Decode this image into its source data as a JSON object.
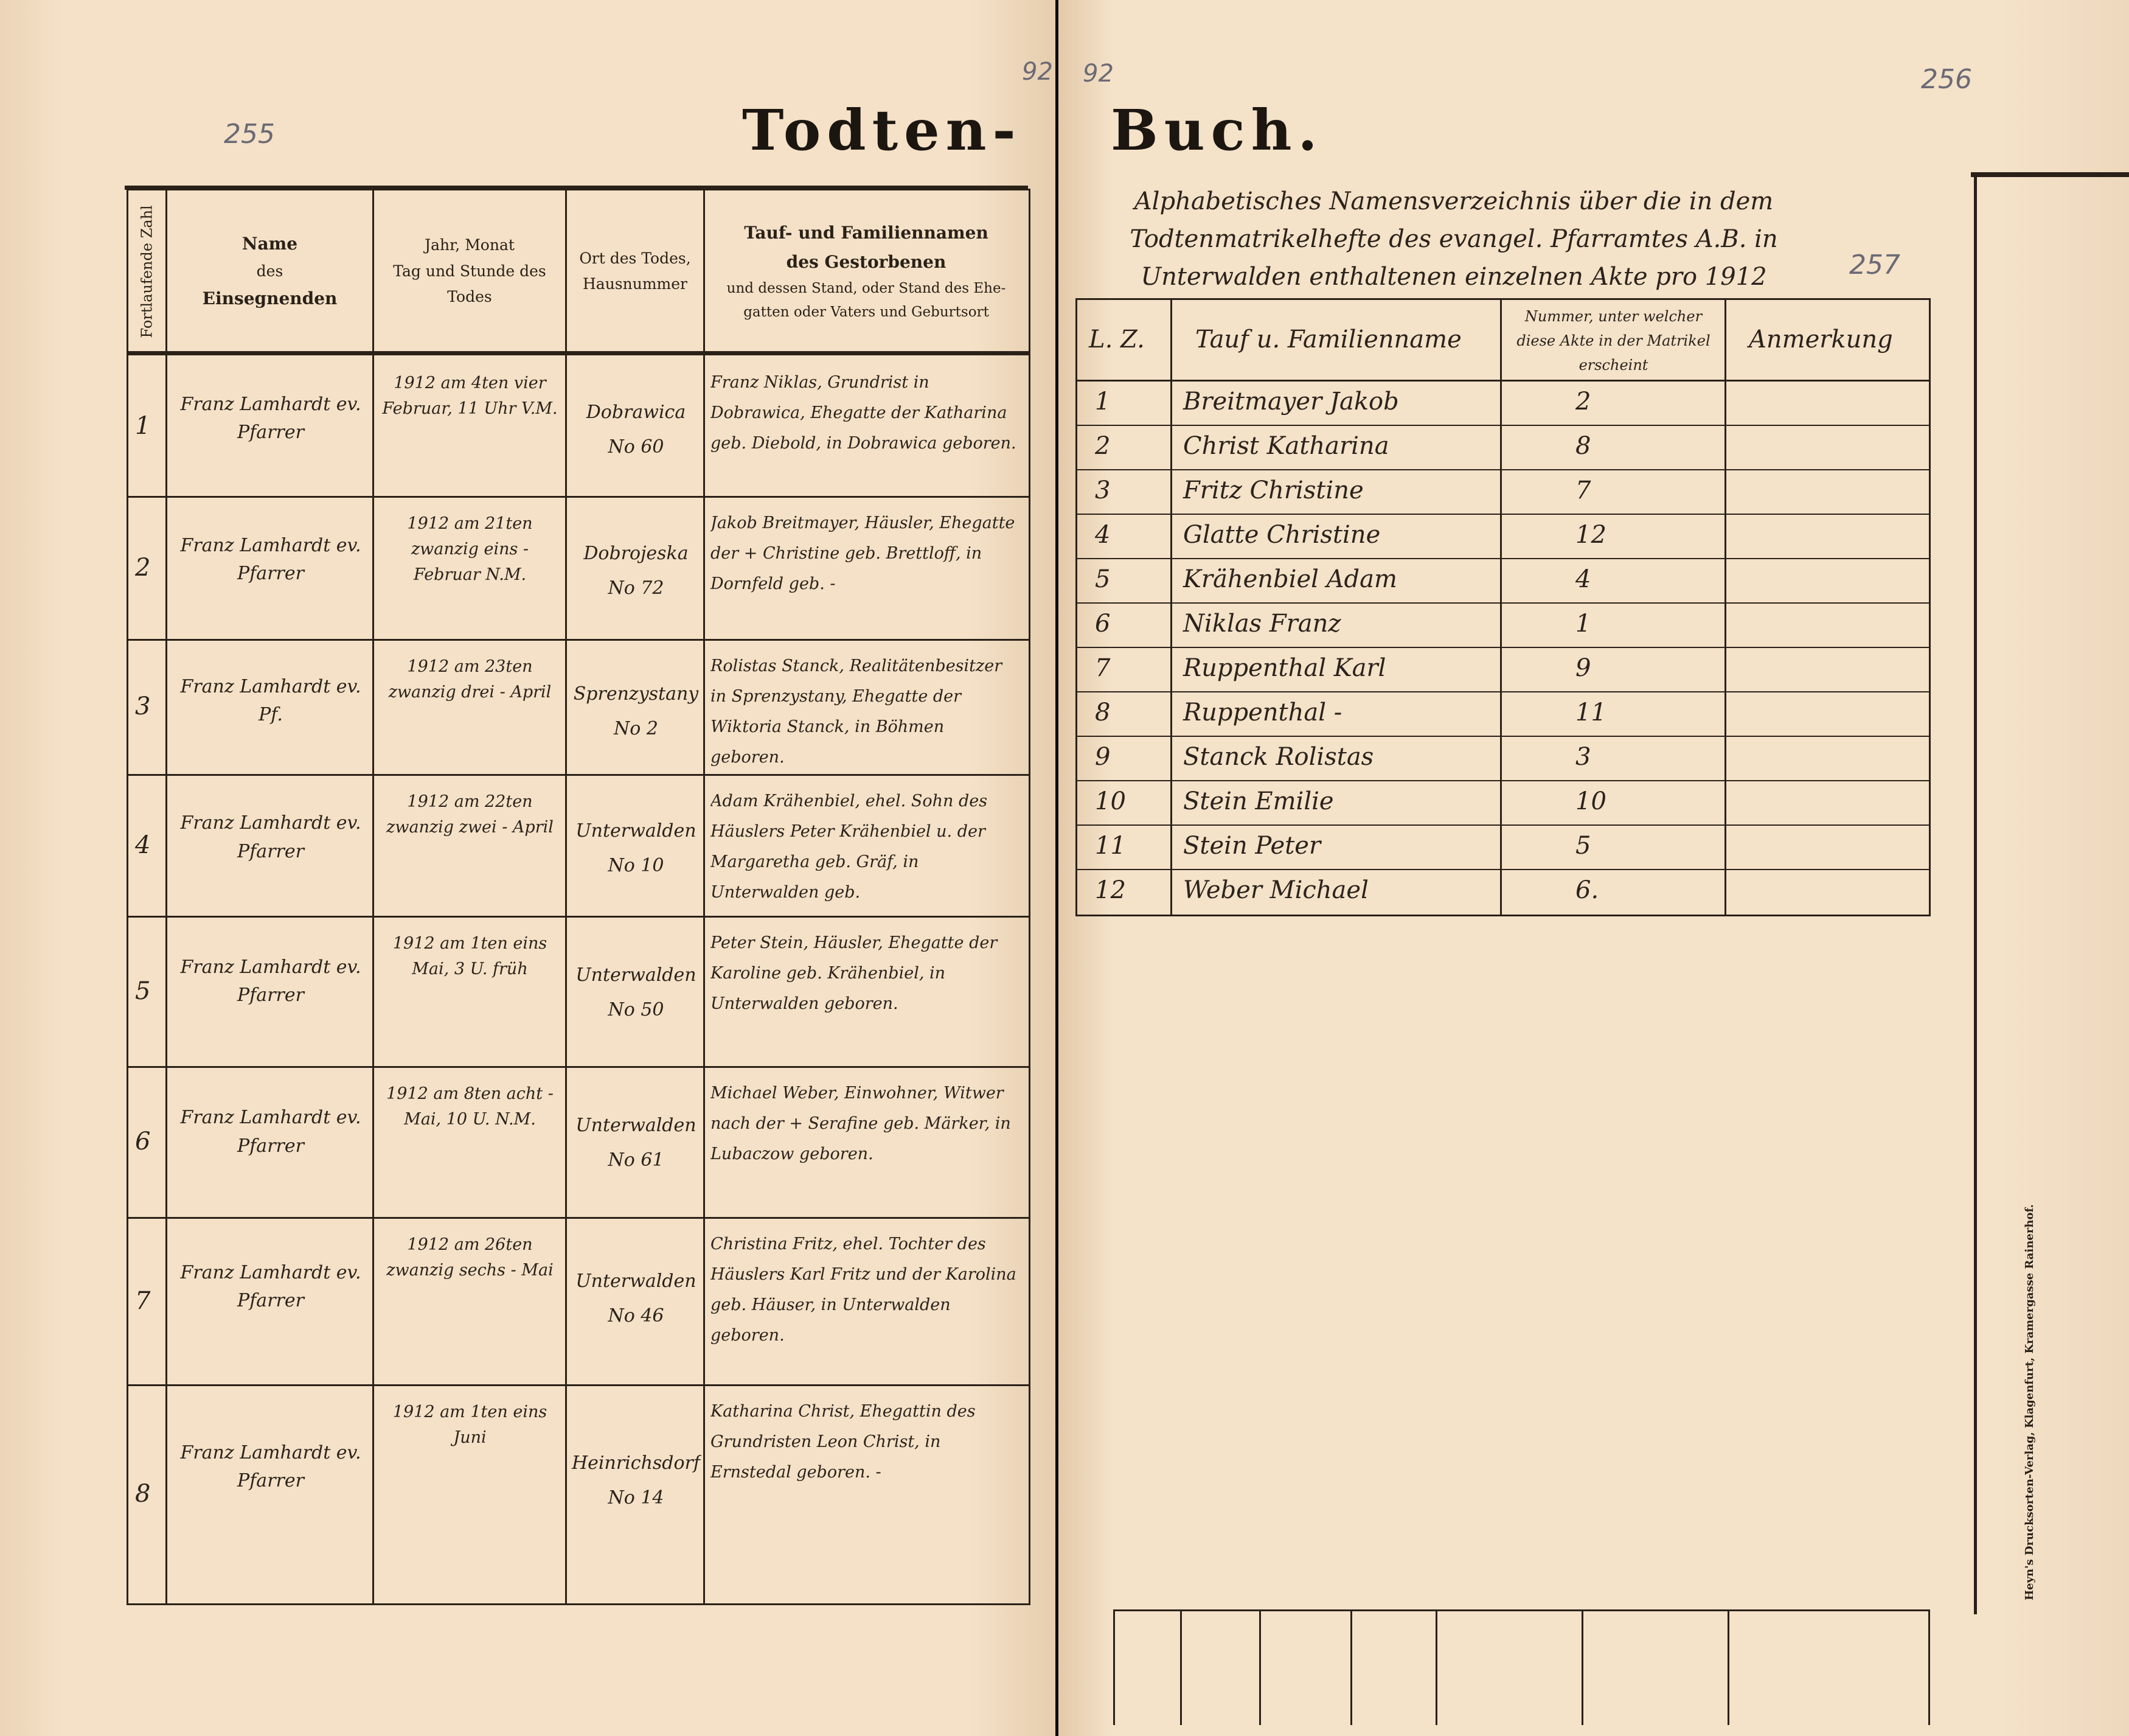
{
  "page_numbers": {
    "left_pencil": "255",
    "left_top": "92",
    "right_top": "92",
    "right_pencil": "256",
    "index_pencil": "257"
  },
  "title": {
    "left": "Todten-",
    "right": "Buch."
  },
  "left_table": {
    "headers": {
      "col1": "Fortlaufende Zahl",
      "col2": [
        "Name",
        "des",
        "Einsegnenden"
      ],
      "col3": [
        "Jahr, Monat",
        "Tag und Stunde des",
        "Todes"
      ],
      "col4": [
        "Ort des Todes,",
        "Hausnummer"
      ],
      "col5": [
        "Tauf- und Familiennamen",
        "des Gestorbenen",
        "und dessen Stand, oder Stand des Ehe-",
        "gatten oder Vaters und Geburtsort"
      ]
    },
    "rows": [
      {
        "no": "1",
        "officiant": "Franz Lamhardt ev. Pfarrer",
        "date": "1912 am 4ten vier Februar, 11 Uhr V.M.",
        "place": "Dobrawica No 60",
        "deceased": "Franz Niklas, Grundrist in Dobrawica, Ehegatte der Katharina geb. Diebold, in Dobrawica geboren."
      },
      {
        "no": "2",
        "officiant": "Franz Lamhardt ev. Pfarrer",
        "date": "1912 am 21ten zwanzig eins - Februar N.M.",
        "place": "Dobrojeska No 72",
        "deceased": "Jakob Breitmayer, Häusler, Ehegatte der + Christine geb. Brettloff, in Dornfeld geb. -"
      },
      {
        "no": "3",
        "officiant": "Franz Lamhardt ev. Pf.",
        "date": "1912 am 23ten zwanzig drei - April",
        "place": "Sprenzystany No 2",
        "deceased": "Rolistas Stanck, Realitätenbesitzer in Sprenzystany, Ehegatte der Wiktoria Stanck, in Böhmen geboren."
      },
      {
        "no": "4",
        "officiant": "Franz Lamhardt ev. Pfarrer",
        "date": "1912 am 22ten zwanzig zwei - April",
        "place": "Unterwalden No 10",
        "deceased": "Adam Krähenbiel, ehel. Sohn des Häuslers Peter Krähenbiel u. der Margaretha geb. Gräf, in Unterwalden geb."
      },
      {
        "no": "5",
        "officiant": "Franz Lamhardt ev. Pfarrer",
        "date": "1912 am 1ten eins Mai, 3 U. früh",
        "place": "Unterwalden No 50",
        "deceased": "Peter Stein, Häusler, Ehegatte der Karoline geb. Krähenbiel, in Unterwalden geboren."
      },
      {
        "no": "6",
        "officiant": "Franz Lamhardt ev. Pfarrer",
        "date": "1912 am 8ten acht - Mai, 10 U. N.M.",
        "place": "Unterwalden No 61",
        "deceased": "Michael Weber, Einwohner, Witwer nach der + Serafine geb. Märker, in Lubaczow geboren."
      },
      {
        "no": "7",
        "officiant": "Franz Lamhardt ev. Pfarrer",
        "date": "1912 am 26ten zwanzig sechs - Mai",
        "place": "Unterwalden No 46",
        "deceased": "Christina Fritz, ehel. Tochter des Häuslers Karl Fritz und der Karolina geb. Häuser, in Unterwalden geboren."
      },
      {
        "no": "8",
        "officiant": "Franz Lamhardt ev. Pfarrer",
        "date": "1912 am 1ten eins Juni",
        "place": "Heinrichsdorf No 14",
        "deceased": "Katharina Christ, Ehegattin des Grundristen Leon Christ, in Ernstedal geboren. -"
      }
    ]
  },
  "index": {
    "heading": "Alphabetisches Namensverzeichnis über die in dem Todtenmatrikelhefte des evangel. Pfarramtes A.B. in Unterwalden enthaltenen einzelnen Akte pro 1912",
    "headers": {
      "no": "L. Z.",
      "name": "Tauf u. Familienname",
      "number": "Nummer, unter welcher diese Akte in der Matrikel erscheint",
      "remark": "Anmerkung"
    },
    "rows": [
      {
        "no": "1",
        "name": "Breitmayer Jakob",
        "number": "2"
      },
      {
        "no": "2",
        "name": "Christ Katharina",
        "number": "8"
      },
      {
        "no": "3",
        "name": "Fritz Christine",
        "number": "7"
      },
      {
        "no": "4",
        "name": "Glatte Christine",
        "number": "12"
      },
      {
        "no": "5",
        "name": "Krähenbiel Adam",
        "number": "4"
      },
      {
        "no": "6",
        "name": "Niklas Franz",
        "number": "1"
      },
      {
        "no": "7",
        "name": "Ruppenthal Karl",
        "number": "9"
      },
      {
        "no": "8",
        "name": "Ruppenthal -",
        "number": "11"
      },
      {
        "no": "9",
        "name": "Stanck Rolistas",
        "number": "3"
      },
      {
        "no": "10",
        "name": "Stein Emilie",
        "number": "10"
      },
      {
        "no": "11",
        "name": "Stein Peter",
        "number": "5"
      },
      {
        "no": "12",
        "name": "Weber Michael",
        "number": "6."
      }
    ]
  },
  "publisher": "Heyn's Drucksorten-Verlag, Klagenfurt, Kramergasse Rainerhof.",
  "colors": {
    "paper": "#f3dfc4",
    "ink": "#2a2118",
    "pencil": "#6b6a75"
  }
}
